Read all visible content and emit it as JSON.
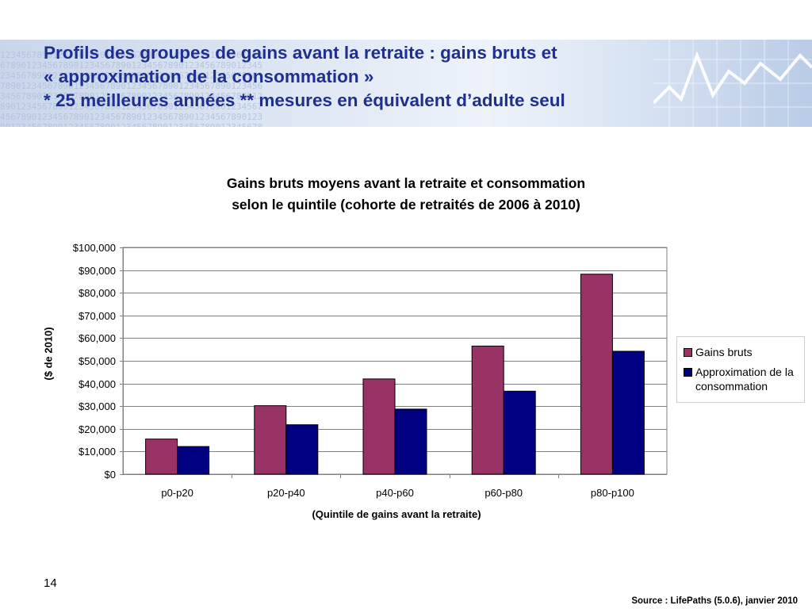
{
  "slide": {
    "title_lines": [
      "Profils des groupes de gains avant la retraite : gains bruts et",
      "« approximation de la consommation »",
      "* 25 meilleures années  ** mesures en équivalent d’adulte seul"
    ],
    "page_number": "14",
    "source": "Source : LifePaths  (5.0.6), janvier 2010"
  },
  "chart_data": {
    "type": "bar",
    "title_lines": [
      "Gains bruts moyens avant la retraite et consommation",
      "selon le quintile (cohorte de retraités de 2006 à 2010)"
    ],
    "xlabel": "(Quintile de gains avant la retraite)",
    "ylabel": "($ de 2010)",
    "categories": [
      "p0-p20",
      "p20-p40",
      "p40-p60",
      "p60-p80",
      "p80-p100"
    ],
    "series": [
      {
        "name": "Gains bruts",
        "color": "#993366",
        "values": [
          15500,
          30200,
          42000,
          56500,
          88200
        ]
      },
      {
        "name": "Approximation de la consommation",
        "color": "#000080",
        "values": [
          12200,
          21800,
          28700,
          36600,
          54200
        ]
      }
    ],
    "ylim": [
      0,
      100000
    ],
    "yticks": [
      {
        "value": 0,
        "label": "$0"
      },
      {
        "value": 10000,
        "label": "$10,000"
      },
      {
        "value": 20000,
        "label": "$20,000"
      },
      {
        "value": 30000,
        "label": "$30,000"
      },
      {
        "value": 40000,
        "label": "$40,000"
      },
      {
        "value": 50000,
        "label": "$50,000"
      },
      {
        "value": 60000,
        "label": "$60,000"
      },
      {
        "value": 70000,
        "label": "$70,000"
      },
      {
        "value": 80000,
        "label": "$80,000"
      },
      {
        "value": 90000,
        "label": "$90,000"
      },
      {
        "value": 100000,
        "label": "$100,000"
      }
    ],
    "grid": true,
    "legend": "right"
  }
}
